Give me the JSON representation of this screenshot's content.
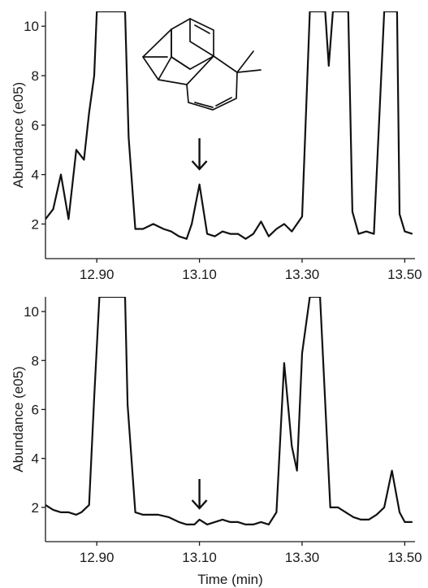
{
  "chart_data": [
    {
      "type": "line",
      "xlabel": "",
      "ylabel": "Abundance (e05)",
      "xlim": [
        12.8,
        13.52
      ],
      "ylim": [
        0.6,
        10.6
      ],
      "xticks": [
        12.9,
        13.1,
        13.3,
        13.5
      ],
      "xtick_labels": [
        "12.90",
        "13.10",
        "13.30",
        "13.50"
      ],
      "yticks": [
        2,
        4,
        6,
        8,
        10
      ],
      "ytick_labels": [
        "2",
        "4",
        "6",
        "8",
        "10"
      ],
      "grid": false,
      "series": [
        {
          "x": [
            12.8,
            12.815,
            12.83,
            12.845,
            12.86,
            12.875,
            12.885,
            12.895,
            12.9,
            12.955,
            12.962,
            12.975,
            12.99,
            13.01,
            13.03,
            13.045,
            13.06,
            13.075,
            13.085,
            13.1,
            13.115,
            13.13,
            13.145,
            13.16,
            13.175,
            13.19,
            13.205,
            13.22,
            13.235,
            13.25,
            13.265,
            13.28,
            13.29,
            13.3,
            13.315,
            13.345,
            13.352,
            13.36,
            13.39,
            13.398,
            13.41,
            13.425,
            13.44,
            13.46,
            13.485,
            13.49,
            13.5,
            13.515
          ],
          "y": [
            2.2,
            2.6,
            4.0,
            2.2,
            5.0,
            4.6,
            6.5,
            8.0,
            10.6,
            10.6,
            5.5,
            1.8,
            1.8,
            2.0,
            1.8,
            1.7,
            1.5,
            1.4,
            2.0,
            3.6,
            1.6,
            1.5,
            1.7,
            1.6,
            1.6,
            1.4,
            1.6,
            2.1,
            1.5,
            1.8,
            2.0,
            1.7,
            2.0,
            2.3,
            10.6,
            10.6,
            8.4,
            10.6,
            10.6,
            2.5,
            1.6,
            1.7,
            1.6,
            10.6,
            10.6,
            2.4,
            1.7,
            1.6
          ]
        }
      ],
      "annotations": [
        "downward arrow at 13.10",
        "chemical structure inset"
      ]
    },
    {
      "type": "line",
      "xlabel": "Time (min)",
      "ylabel": "Abundance (e05)",
      "xlim": [
        12.8,
        13.52
      ],
      "ylim": [
        0.6,
        10.6
      ],
      "xticks": [
        12.9,
        13.1,
        13.3,
        13.5
      ],
      "xtick_labels": [
        "12.90",
        "13.10",
        "13.30",
        "13.50"
      ],
      "yticks": [
        2,
        4,
        6,
        8,
        10
      ],
      "ytick_labels": [
        "2",
        "4",
        "6",
        "8",
        "10"
      ],
      "grid": false,
      "series": [
        {
          "x": [
            12.8,
            12.815,
            12.83,
            12.845,
            12.86,
            12.87,
            12.885,
            12.895,
            12.905,
            12.955,
            12.96,
            12.975,
            12.99,
            13.005,
            13.02,
            13.04,
            13.06,
            13.075,
            13.09,
            13.1,
            13.115,
            13.13,
            13.145,
            13.16,
            13.175,
            13.19,
            13.205,
            13.22,
            13.235,
            13.25,
            13.265,
            13.28,
            13.29,
            13.3,
            13.315,
            13.335,
            13.355,
            13.37,
            13.385,
            13.4,
            13.415,
            13.43,
            13.445,
            13.46,
            13.475,
            13.49,
            13.5,
            13.515
          ],
          "y": [
            2.1,
            1.9,
            1.8,
            1.8,
            1.7,
            1.8,
            2.1,
            6.5,
            10.6,
            10.6,
            6.2,
            1.8,
            1.7,
            1.7,
            1.7,
            1.6,
            1.4,
            1.3,
            1.3,
            1.5,
            1.3,
            1.4,
            1.5,
            1.4,
            1.4,
            1.3,
            1.3,
            1.4,
            1.3,
            1.8,
            7.9,
            4.5,
            3.5,
            8.3,
            10.6,
            10.6,
            2.0,
            2.0,
            1.8,
            1.6,
            1.5,
            1.5,
            1.7,
            2.0,
            3.5,
            1.8,
            1.4,
            1.4
          ]
        }
      ],
      "annotations": [
        "downward arrow at 13.10"
      ]
    }
  ]
}
